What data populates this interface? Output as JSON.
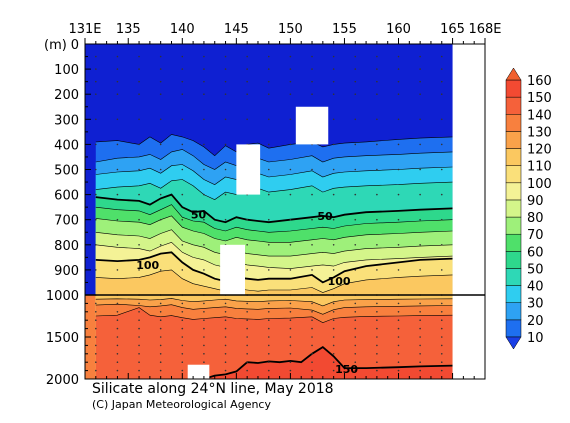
{
  "chart_data": {
    "type": "heatmap",
    "variable": "Silicate",
    "title": "Silicate along 24°N line, May 2018",
    "credit": "(C) Japan Meteorological Agency",
    "y_unit_label": "(m)",
    "x_axis": {
      "range": [
        131,
        168
      ],
      "ticks": [
        {
          "value": 131,
          "label": "131E"
        },
        {
          "value": 135,
          "label": "135"
        },
        {
          "value": 140,
          "label": "140"
        },
        {
          "value": 145,
          "label": "145"
        },
        {
          "value": 150,
          "label": "150"
        },
        {
          "value": 155,
          "label": "155"
        },
        {
          "value": 160,
          "label": "160"
        },
        {
          "value": 165,
          "label": "165"
        },
        {
          "value": 168,
          "label": "168E"
        }
      ]
    },
    "y_axis_upper": {
      "range": [
        0,
        1000
      ],
      "ticks": [
        {
          "value": 0,
          "label": "0"
        },
        {
          "value": 100,
          "label": "100"
        },
        {
          "value": 200,
          "label": "200"
        },
        {
          "value": 300,
          "label": "300"
        },
        {
          "value": 400,
          "label": "400"
        },
        {
          "value": 500,
          "label": "500"
        },
        {
          "value": 600,
          "label": "600"
        },
        {
          "value": 700,
          "label": "700"
        },
        {
          "value": 800,
          "label": "800"
        },
        {
          "value": 900,
          "label": "900"
        }
      ]
    },
    "y_axis_lower": {
      "range": [
        1000,
        2000
      ],
      "ticks": [
        {
          "value": 1000,
          "label": "1000"
        },
        {
          "value": 1500,
          "label": "1500"
        },
        {
          "value": 2000,
          "label": "2000"
        }
      ]
    },
    "colorbar": {
      "levels": [
        {
          "value": 10,
          "label": "10",
          "color": "#1a3fe6"
        },
        {
          "value": 20,
          "label": "20",
          "color": "#1e6ff0"
        },
        {
          "value": 30,
          "label": "30",
          "color": "#2ea2f3"
        },
        {
          "value": 40,
          "label": "40",
          "color": "#2fcdf0"
        },
        {
          "value": 50,
          "label": "50",
          "color": "#2ed8b6"
        },
        {
          "value": 60,
          "label": "60",
          "color": "#2ed88c"
        },
        {
          "value": 70,
          "label": "70",
          "color": "#4fe06a"
        },
        {
          "value": 80,
          "label": "80",
          "color": "#9ef07a"
        },
        {
          "value": 90,
          "label": "90",
          "color": "#d4f58a"
        },
        {
          "value": 100,
          "label": "100",
          "color": "#f4f296"
        },
        {
          "value": 110,
          "label": "110",
          "color": "#fae07a"
        },
        {
          "value": 120,
          "label": "120",
          "color": "#fbc860"
        },
        {
          "value": 130,
          "label": "130",
          "color": "#faa24a"
        },
        {
          "value": 140,
          "label": "140",
          "color": "#f8803e"
        },
        {
          "value": 150,
          "label": "150",
          "color": "#f5613a"
        },
        {
          "value": 160,
          "label": "160",
          "color": "#f24a32"
        }
      ],
      "under_color": "#0f20d2",
      "over_color": "#f0602e"
    },
    "contour_labels": [
      {
        "value": 50,
        "label": "50",
        "lon": 141.5,
        "depth": 680
      },
      {
        "value": 50,
        "label": "50",
        "lon": 153.2,
        "depth": 685
      },
      {
        "value": 100,
        "label": "100",
        "lon": 136.8,
        "depth": 880
      },
      {
        "value": 100,
        "label": "100",
        "lon": 154.5,
        "depth": 945
      },
      {
        "value": 150,
        "label": "150",
        "lon": 155.2,
        "depth": 1880
      }
    ],
    "contours": [
      {
        "value": 10,
        "bold": false,
        "lon": [
          132,
          134,
          136,
          137,
          138,
          139,
          140,
          141,
          142,
          143,
          144,
          145,
          146,
          147,
          148,
          150,
          152,
          153,
          154,
          155,
          157,
          160,
          162,
          165
        ],
        "depth": [
          390,
          385,
          400,
          370,
          395,
          360,
          370,
          385,
          410,
          445,
          405,
          430,
          400,
          395,
          415,
          400,
          390,
          410,
          400,
          395,
          390,
          380,
          375,
          370
        ]
      },
      {
        "value": 20,
        "bold": false,
        "lon": [
          132,
          134,
          136,
          137,
          138,
          139,
          140,
          141,
          142,
          143,
          144,
          145,
          146,
          147,
          148,
          150,
          152,
          153,
          154,
          155,
          157,
          160,
          162,
          165
        ],
        "depth": [
          470,
          455,
          450,
          440,
          460,
          430,
          420,
          445,
          480,
          500,
          470,
          485,
          460,
          455,
          470,
          460,
          445,
          470,
          455,
          450,
          445,
          440,
          435,
          430
        ]
      },
      {
        "value": 30,
        "bold": false,
        "lon": [
          132,
          134,
          136,
          137,
          138,
          139,
          140,
          141,
          142,
          143,
          144,
          145,
          146,
          147,
          148,
          150,
          152,
          153,
          154,
          155,
          157,
          160,
          162,
          165
        ],
        "depth": [
          520,
          510,
          505,
          495,
          515,
          485,
          480,
          505,
          540,
          560,
          530,
          540,
          520,
          515,
          530,
          520,
          505,
          530,
          515,
          510,
          505,
          500,
          495,
          490
        ]
      },
      {
        "value": 40,
        "bold": false,
        "lon": [
          132,
          134,
          136,
          137,
          138,
          139,
          140,
          141,
          142,
          143,
          144,
          145,
          146,
          147,
          148,
          150,
          152,
          153,
          154,
          155,
          157,
          160,
          162,
          165
        ],
        "depth": [
          580,
          570,
          565,
          555,
          575,
          545,
          540,
          565,
          600,
          620,
          590,
          600,
          580,
          575,
          590,
          580,
          565,
          590,
          575,
          570,
          565,
          560,
          555,
          550
        ]
      },
      {
        "value": 50,
        "bold": true,
        "lon": [
          132,
          134,
          136,
          137,
          138,
          139,
          140,
          141,
          142,
          143,
          144,
          145,
          146,
          147,
          148,
          150,
          152,
          153,
          154,
          155,
          157,
          160,
          162,
          165
        ],
        "depth": [
          610,
          620,
          625,
          640,
          615,
          600,
          650,
          670,
          665,
          700,
          710,
          690,
          700,
          705,
          710,
          700,
          690,
          685,
          690,
          680,
          670,
          665,
          660,
          655
        ]
      },
      {
        "value": 60,
        "bold": false,
        "lon": [
          132,
          134,
          136,
          137,
          138,
          139,
          140,
          141,
          142,
          143,
          144,
          145,
          146,
          147,
          148,
          150,
          152,
          153,
          154,
          155,
          157,
          160,
          162,
          165
        ],
        "depth": [
          650,
          660,
          665,
          680,
          660,
          640,
          690,
          705,
          710,
          735,
          745,
          730,
          740,
          745,
          750,
          745,
          735,
          730,
          735,
          725,
          715,
          710,
          705,
          700
        ]
      },
      {
        "value": 70,
        "bold": false,
        "lon": [
          132,
          134,
          136,
          137,
          138,
          139,
          140,
          141,
          142,
          143,
          144,
          145,
          146,
          147,
          148,
          150,
          152,
          153,
          154,
          155,
          157,
          160,
          162,
          165
        ],
        "depth": [
          695,
          705,
          710,
          720,
          700,
          685,
          730,
          745,
          755,
          775,
          785,
          770,
          780,
          785,
          790,
          790,
          780,
          775,
          780,
          770,
          760,
          755,
          750,
          745
        ]
      },
      {
        "value": 80,
        "bold": false,
        "lon": [
          132,
          134,
          136,
          137,
          138,
          139,
          140,
          141,
          142,
          143,
          144,
          145,
          146,
          147,
          148,
          150,
          152,
          153,
          154,
          155,
          157,
          160,
          162,
          165
        ],
        "depth": [
          750,
          760,
          765,
          775,
          755,
          740,
          785,
          800,
          810,
          830,
          840,
          825,
          835,
          840,
          845,
          845,
          835,
          830,
          835,
          825,
          815,
          810,
          805,
          800
        ]
      },
      {
        "value": 90,
        "bold": false,
        "lon": [
          132,
          134,
          136,
          137,
          138,
          139,
          140,
          141,
          142,
          143,
          144,
          145,
          146,
          147,
          148,
          150,
          152,
          153,
          154,
          155,
          157,
          160,
          162,
          165
        ],
        "depth": [
          800,
          810,
          815,
          825,
          805,
          790,
          830,
          850,
          860,
          880,
          890,
          870,
          880,
          885,
          890,
          895,
          885,
          880,
          885,
          870,
          860,
          855,
          850,
          845
        ]
      },
      {
        "value": 100,
        "bold": true,
        "lon": [
          132,
          134,
          136,
          137,
          138,
          139,
          140,
          141,
          142,
          143,
          144,
          145,
          146,
          147,
          148,
          150,
          152,
          153,
          154,
          155,
          157,
          160,
          162,
          165
        ],
        "depth": [
          860,
          865,
          860,
          850,
          835,
          830,
          870,
          900,
          915,
          935,
          945,
          930,
          935,
          940,
          935,
          935,
          920,
          950,
          930,
          905,
          885,
          870,
          860,
          855
        ]
      },
      {
        "value": 110,
        "bold": false,
        "lon": [
          132,
          134,
          136,
          137,
          138,
          139,
          140,
          141,
          142,
          143,
          144,
          145,
          146,
          147,
          148,
          150,
          152,
          153,
          154,
          155,
          157,
          160,
          162,
          165
        ],
        "depth": [
          930,
          935,
          930,
          920,
          905,
          900,
          935,
          955,
          965,
          975,
          985,
          975,
          980,
          985,
          980,
          980,
          970,
          990,
          975,
          955,
          940,
          930,
          925,
          920
        ]
      },
      {
        "value": 120,
        "bold": false,
        "lon": [
          132,
          134,
          136,
          137,
          138,
          139,
          140,
          141,
          142,
          143,
          144,
          145,
          146,
          147,
          148,
          150,
          152,
          153,
          154,
          155,
          157,
          160,
          162,
          165
        ],
        "depth": [
          1050,
          1045,
          1050,
          1060,
          1055,
          1040,
          1065,
          1080,
          1070,
          1060,
          1050,
          1070,
          1075,
          1080,
          1070,
          1065,
          1080,
          1130,
          1080,
          1060,
          1055,
          1050,
          1048,
          1045
        ]
      },
      {
        "value": 130,
        "bold": false,
        "lon": [
          132,
          134,
          136,
          137,
          138,
          139,
          140,
          141,
          142,
          143,
          144,
          145,
          146,
          147,
          148,
          150,
          152,
          153,
          154,
          155,
          157,
          160,
          162,
          165
        ],
        "depth": [
          1120,
          1110,
          1125,
          1140,
          1130,
          1115,
          1150,
          1170,
          1160,
          1150,
          1140,
          1160,
          1165,
          1170,
          1160,
          1155,
          1180,
          1230,
          1175,
          1150,
          1140,
          1135,
          1130,
          1125
        ]
      },
      {
        "value": 140,
        "bold": false,
        "lon": [
          132,
          134,
          136,
          137,
          138,
          139,
          140,
          141,
          142,
          143,
          144,
          145,
          146,
          147,
          148,
          150,
          152,
          153,
          154,
          155,
          157,
          160,
          162,
          165
        ],
        "depth": [
          1250,
          1240,
          1150,
          1240,
          1260,
          1245,
          1270,
          1290,
          1280,
          1270,
          1260,
          1280,
          1285,
          1290,
          1280,
          1275,
          1260,
          1330,
          1280,
          1265,
          1255,
          1250,
          1245,
          1240
        ]
      },
      {
        "value": 150,
        "bold": true,
        "lon": [
          142,
          143,
          144,
          145,
          146,
          147,
          148,
          149,
          150,
          151,
          152,
          153,
          154,
          155,
          157,
          160,
          162,
          165
        ],
        "depth": [
          2000,
          1960,
          1945,
          1910,
          1800,
          1810,
          1790,
          1800,
          1785,
          1800,
          1700,
          1620,
          1730,
          1870,
          1870,
          1860,
          1850,
          1840
        ]
      }
    ],
    "no_data_regions": [
      {
        "lon": [
          150.5,
          153.5
        ],
        "depth": [
          250,
          400
        ]
      },
      {
        "lon": [
          145.0,
          147.2
        ],
        "depth": [
          400,
          600
        ]
      },
      {
        "lon": [
          143.5,
          145.8
        ],
        "depth": [
          800,
          1000
        ]
      },
      {
        "lon": [
          140.5,
          142.5
        ],
        "depth": [
          1830,
          2000
        ]
      },
      {
        "lon": [
          165.0,
          168.0
        ],
        "depth": [
          0,
          2000
        ]
      }
    ],
    "station_lon": [
      132,
      133,
      134,
      135,
      136,
      137,
      138,
      139,
      140,
      141,
      142,
      143,
      144,
      145,
      146,
      147,
      148,
      149,
      150,
      151,
      152,
      153,
      154,
      155,
      156,
      157,
      158,
      159,
      160,
      161,
      162,
      163,
      164,
      165
    ],
    "sample_depths": [
      0,
      50,
      100,
      150,
      200,
      300,
      400,
      500,
      600,
      700,
      800,
      900,
      1000,
      1100,
      1200,
      1300,
      1400,
      1500,
      1600,
      1700,
      1800,
      1900
    ]
  }
}
